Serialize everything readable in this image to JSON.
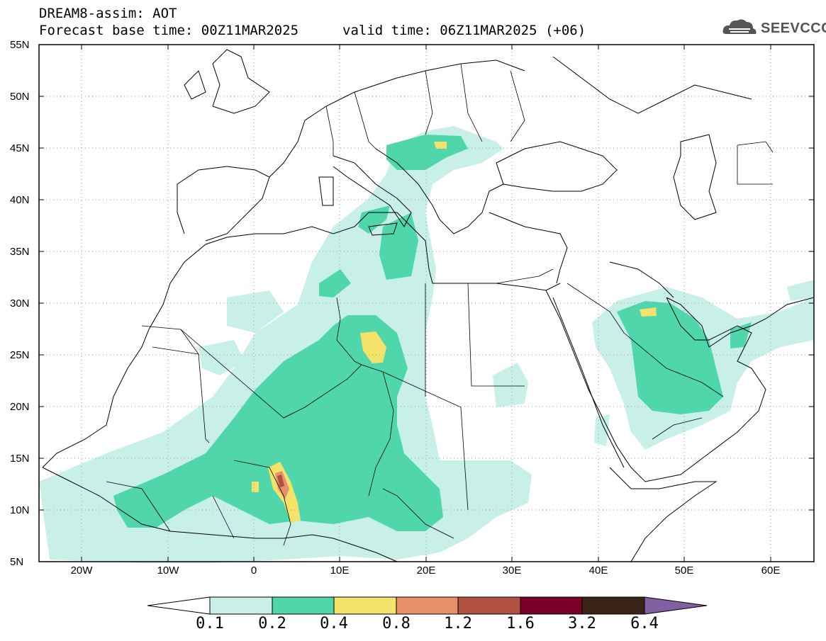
{
  "title": {
    "line1": "DREAM8-assim: AOT",
    "line2": "Forecast base time: 00Z11MAR2025",
    "valid": "valid time: 06Z11MAR2025 (+06)"
  },
  "logo": {
    "text": "SEEVCCC",
    "icon": "cloud-icon"
  },
  "map": {
    "variable": "AOT",
    "extent": {
      "lon": [
        -25,
        65
      ],
      "lat": [
        5,
        55
      ]
    },
    "lat_labels": [
      "55N",
      "50N",
      "45N",
      "40N",
      "35N",
      "30N",
      "25N",
      "20N",
      "15N",
      "10N",
      "5N"
    ],
    "lon_labels": [
      "20W",
      "10W",
      "0",
      "10E",
      "20E",
      "30E",
      "40E",
      "50E",
      "60E"
    ]
  },
  "colorbar": {
    "labels": [
      "0.1",
      "0.2",
      "0.4",
      "0.8",
      "1.2",
      "1.6",
      "3.2",
      "6.4"
    ],
    "colors": [
      "#ffffff",
      "#c8f0e8",
      "#4fd6aa",
      "#f4e26a",
      "#e8906a",
      "#b05040",
      "#7a0028",
      "#3a2418",
      "#8060a0"
    ]
  }
}
